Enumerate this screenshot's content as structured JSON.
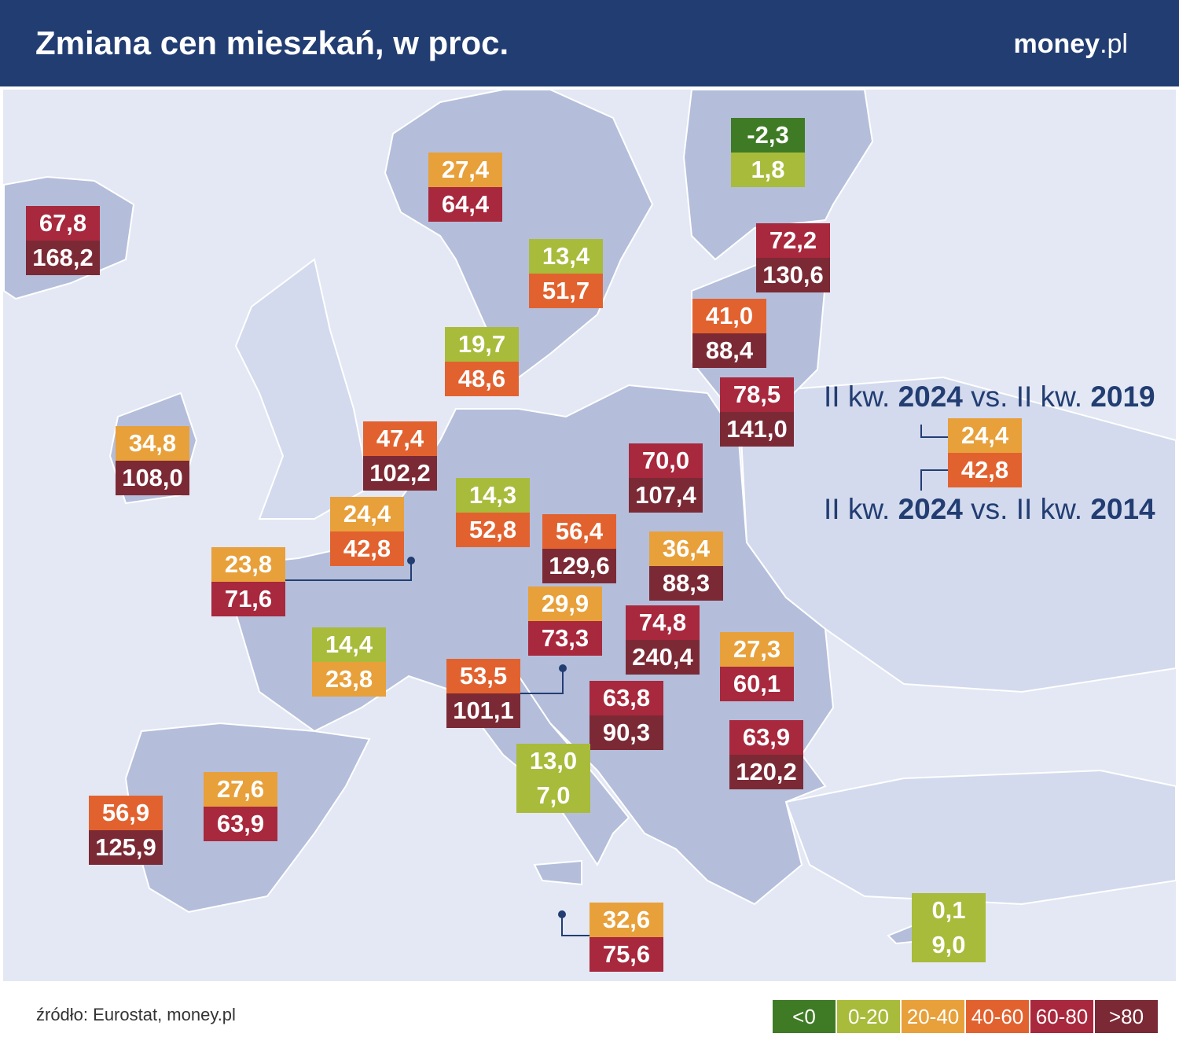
{
  "header": {
    "title": "Zmiana cen mieszkań, w proc.",
    "brand": [
      "money",
      ".pl"
    ]
  },
  "key": {
    "top": [
      "II kw. ",
      "2024",
      " vs. II kw. ",
      "2019"
    ],
    "bottom": [
      "II kw. ",
      "2024",
      " vs. II kw. ",
      "2014"
    ],
    "example": {
      "values": [
        24.4,
        42.8
      ],
      "value_labels": [
        "24,4",
        "42,8"
      ]
    }
  },
  "regions": [
    {
      "values": [
        67.8,
        168.2
      ],
      "value_labels": [
        "67,8",
        "168,2"
      ]
    },
    {
      "values": [
        27.4,
        64.4
      ],
      "value_labels": [
        "27,4",
        "64,4"
      ]
    },
    {
      "values": [
        13.4,
        51.7
      ],
      "value_labels": [
        "13,4",
        "51,7"
      ]
    },
    {
      "values": [
        -2.3,
        1.8
      ],
      "value_labels": [
        "-2,3",
        "1,8"
      ]
    },
    {
      "values": [
        72.2,
        130.6
      ],
      "value_labels": [
        "72,2",
        "130,6"
      ]
    },
    {
      "values": [
        41.0,
        88.4
      ],
      "value_labels": [
        "41,0",
        "88,4"
      ]
    },
    {
      "values": [
        78.5,
        141.0
      ],
      "value_labels": [
        "78,5",
        "141,0"
      ]
    },
    {
      "values": [
        19.7,
        48.6
      ],
      "value_labels": [
        "19,7",
        "48,6"
      ]
    },
    {
      "values": [
        34.8,
        108.0
      ],
      "value_labels": [
        "34,8",
        "108,0"
      ]
    },
    {
      "values": [
        47.4,
        102.2
      ],
      "value_labels": [
        "47,4",
        "102,2"
      ]
    },
    {
      "values": [
        24.4,
        42.8
      ],
      "value_labels": [
        "24,4",
        "42,8"
      ]
    },
    {
      "values": [
        23.8,
        71.6
      ],
      "value_labels": [
        "23,8",
        "71,6"
      ]
    },
    {
      "values": [
        14.3,
        52.8
      ],
      "value_labels": [
        "14,3",
        "52,8"
      ]
    },
    {
      "values": [
        70.0,
        107.4
      ],
      "value_labels": [
        "70,0",
        "107,4"
      ]
    },
    {
      "values": [
        56.4,
        129.6
      ],
      "value_labels": [
        "56,4",
        "129,6"
      ]
    },
    {
      "values": [
        36.4,
        88.3
      ],
      "value_labels": [
        "36,4",
        "88,3"
      ]
    },
    {
      "values": [
        29.9,
        73.3
      ],
      "value_labels": [
        "29,9",
        "73,3"
      ]
    },
    {
      "values": [
        74.8,
        240.4
      ],
      "value_labels": [
        "74,8",
        "240,4"
      ]
    },
    {
      "values": [
        27.3,
        60.1
      ],
      "value_labels": [
        "27,3",
        "60,1"
      ]
    },
    {
      "values": [
        14.4,
        23.8
      ],
      "value_labels": [
        "14,4",
        "23,8"
      ]
    },
    {
      "values": [
        53.5,
        101.1
      ],
      "value_labels": [
        "53,5",
        "101,1"
      ]
    },
    {
      "values": [
        63.8,
        90.3
      ],
      "value_labels": [
        "63,8",
        "90,3"
      ]
    },
    {
      "values": [
        63.9,
        120.2
      ],
      "value_labels": [
        "63,9",
        "120,2"
      ]
    },
    {
      "values": [
        13.0,
        7.0
      ],
      "value_labels": [
        "13,0",
        "7,0"
      ]
    },
    {
      "values": [
        27.6,
        63.9
      ],
      "value_labels": [
        "27,6",
        "63,9"
      ]
    },
    {
      "values": [
        56.9,
        125.9
      ],
      "value_labels": [
        "56,9",
        "125,9"
      ]
    },
    {
      "values": [
        32.6,
        75.6
      ],
      "value_labels": [
        "32,6",
        "75,6"
      ]
    },
    {
      "values": [
        0.1,
        9.0
      ],
      "value_labels": [
        "0,1",
        "9,0"
      ]
    }
  ],
  "legend": {
    "breaks": [
      0,
      20,
      40,
      60,
      80
    ],
    "labels": [
      "<0",
      "0-20",
      "20-40",
      "40-60",
      "60-80",
      ">80"
    ],
    "colors": [
      "#3f7b25",
      "#a9bb3a",
      "#e8a03a",
      "#e2622f",
      "#a8283d",
      "#7b2a35"
    ]
  },
  "source": "źródło: Eurostat, money.pl"
}
